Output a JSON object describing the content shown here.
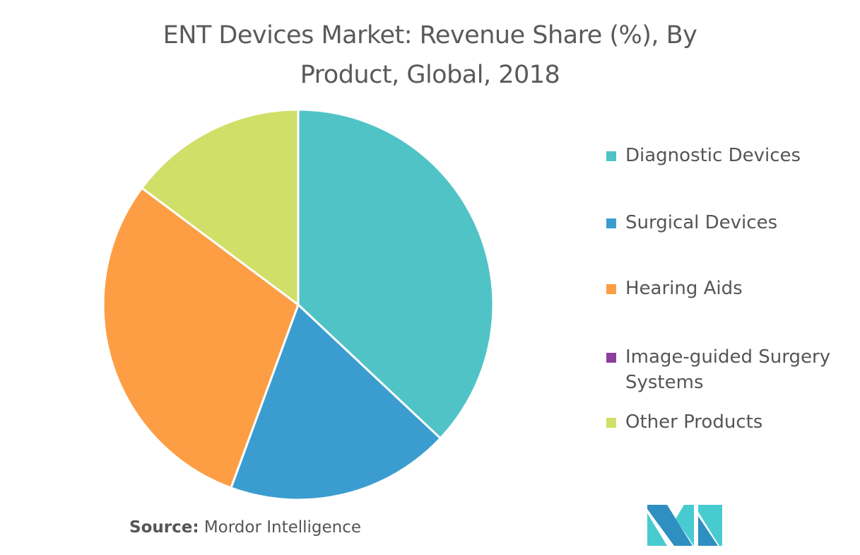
{
  "chart_data": {
    "type": "pie",
    "title": "ENT Devices Market: Revenue Share (%), By Product, Global, 2018",
    "title_lines": [
      "ENT Devices Market: Revenue Share (%), By",
      "Product, Global, 2018"
    ],
    "categories": [
      "Diagnostic Devices",
      "Surgical Devices",
      "Hearing Aids",
      "Image-guided Surgery Systems",
      "Other Products"
    ],
    "legend_lines": [
      [
        "Diagnostic Devices"
      ],
      [
        "Surgical Devices"
      ],
      [
        "Hearing Aids"
      ],
      [
        "Image-guided Surgery",
        "Systems"
      ],
      [
        "Other Products"
      ]
    ],
    "values": [
      37.0,
      18.6,
      29.6,
      0,
      14.8
    ],
    "unit": "%",
    "colors": [
      "#50c3c6",
      "#3b9dcf",
      "#fd9e45",
      "#8b3f9c",
      "#d0df67"
    ],
    "legend_position": "right",
    "start_angle": "top, clockwise"
  },
  "source": {
    "label": "Source:",
    "text": " Mordor Intelligence"
  },
  "logo": {
    "name": "mordor-intelligence-logo",
    "colors": [
      "#2f8fc0",
      "#48cbd0"
    ]
  }
}
